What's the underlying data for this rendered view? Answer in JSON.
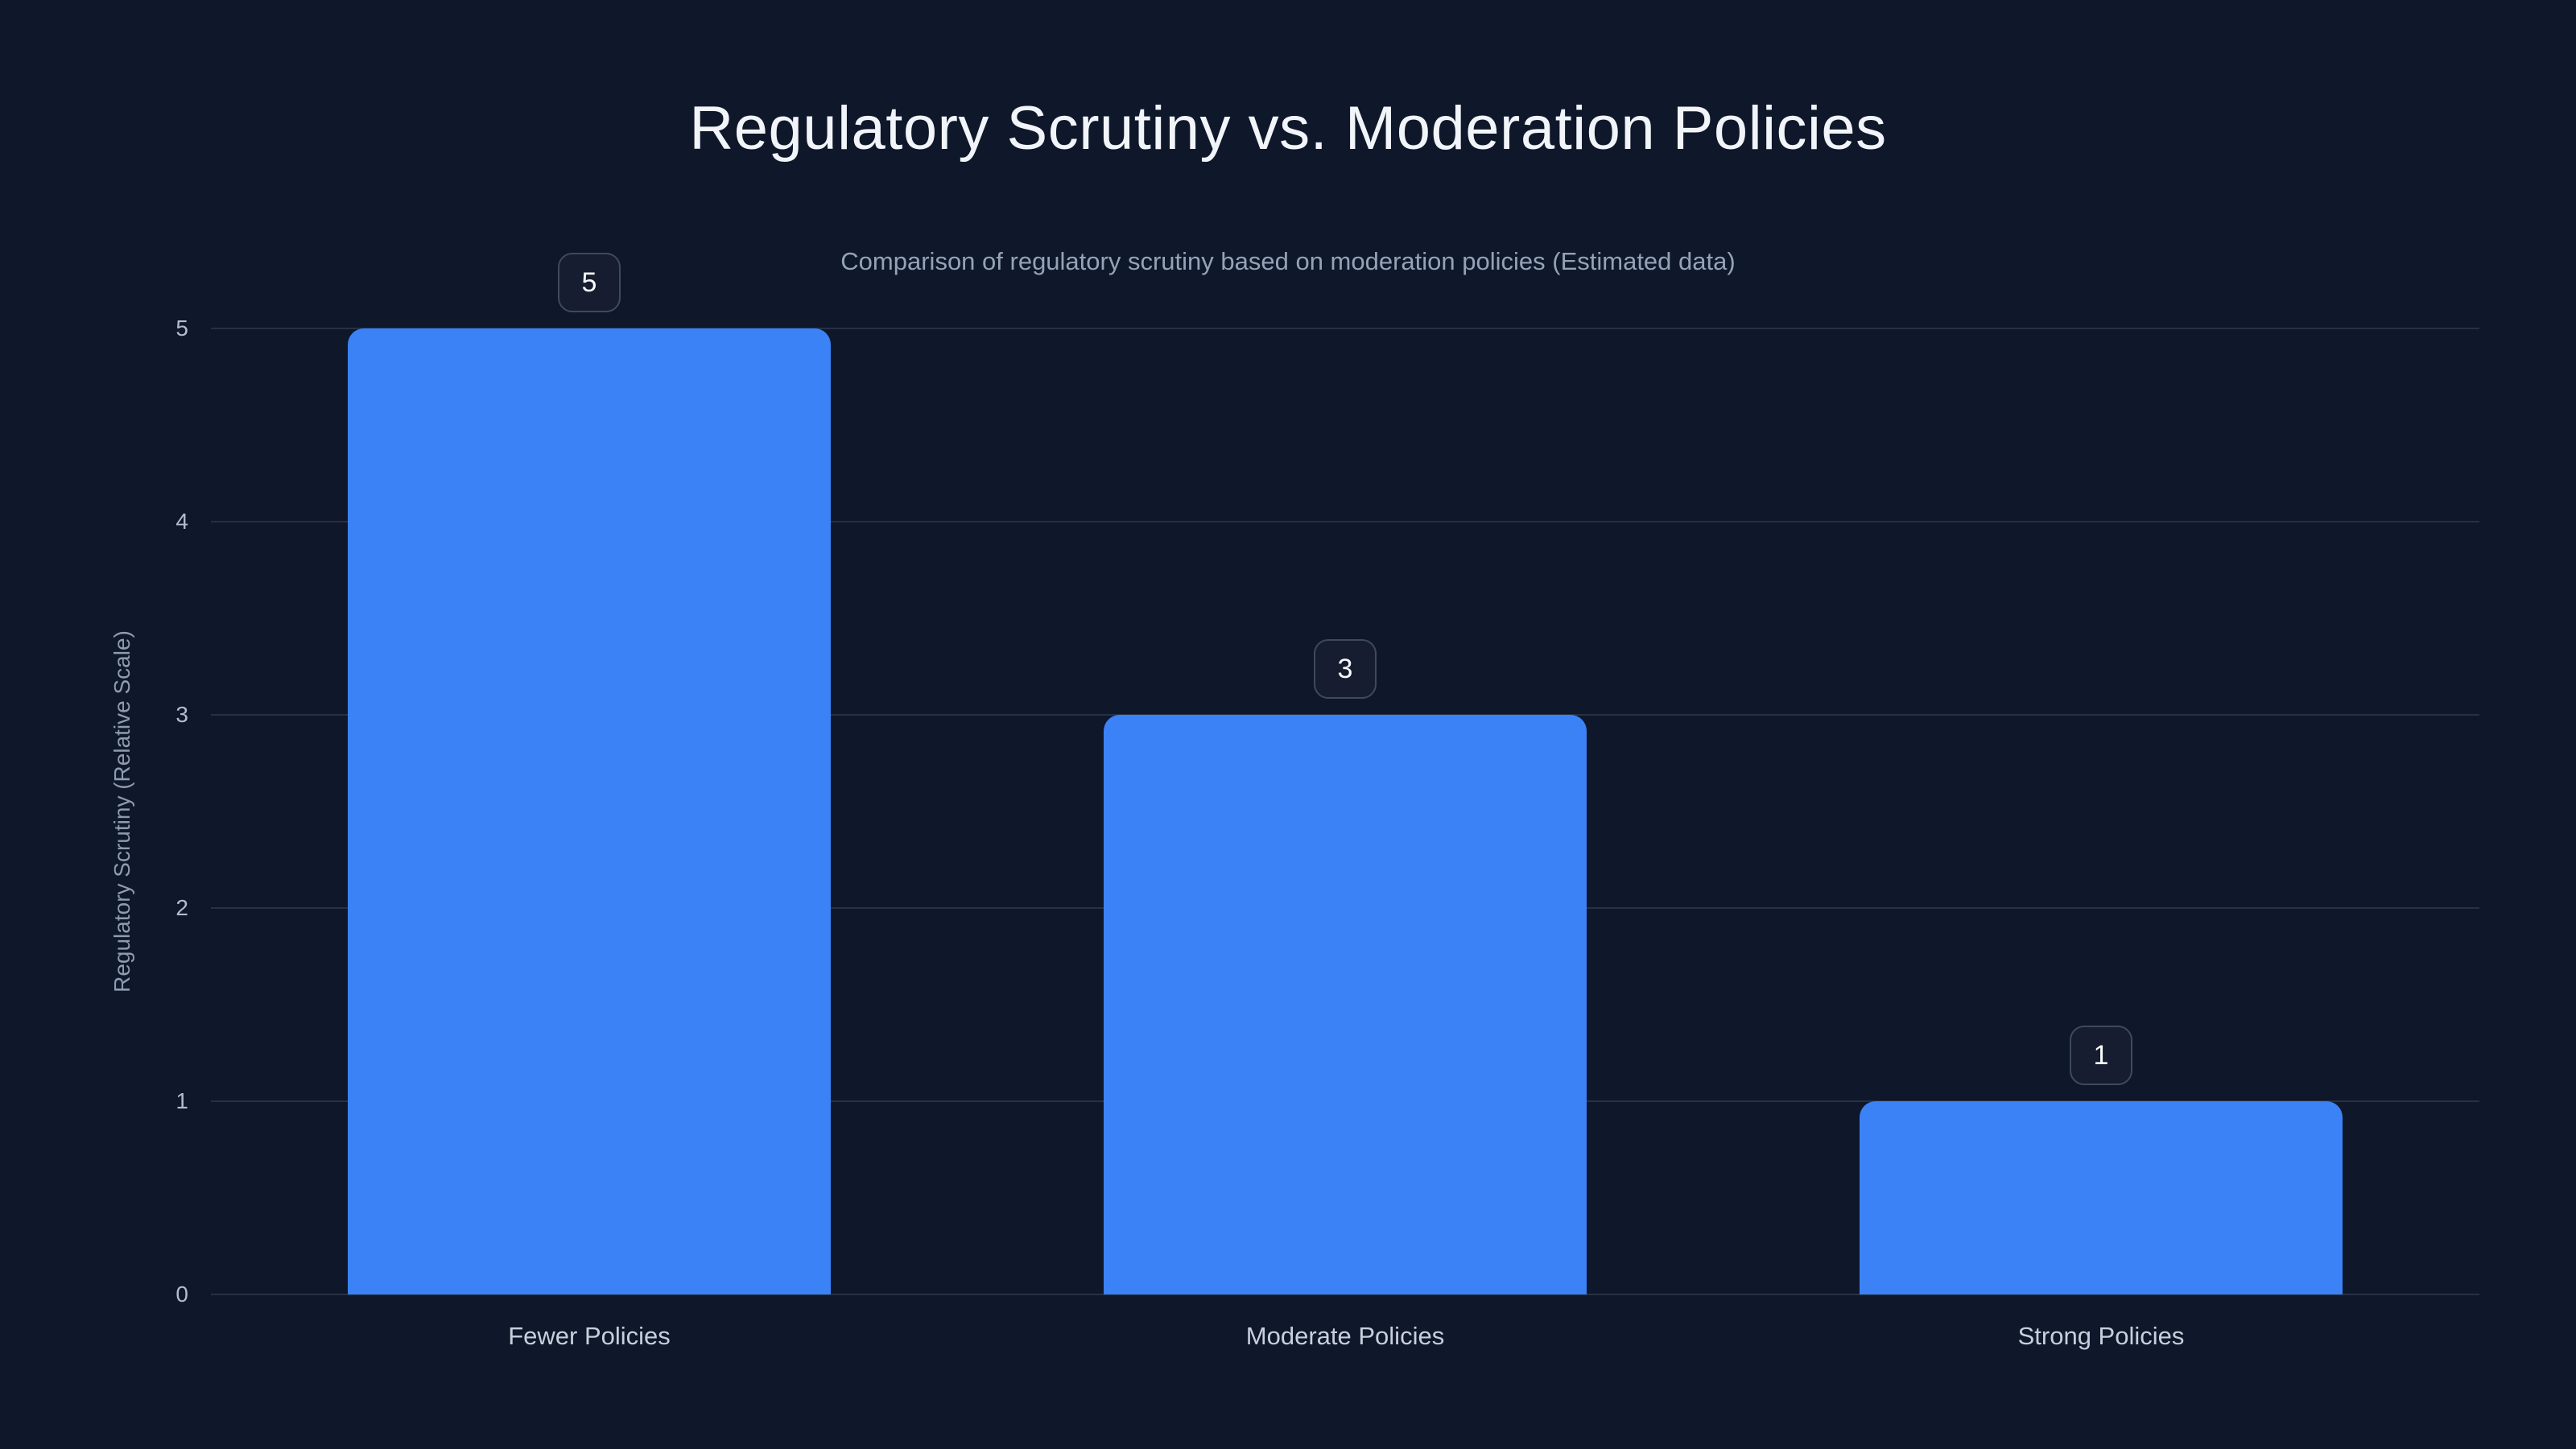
{
  "page": {
    "background_color": "#0f172a"
  },
  "chart_data": {
    "type": "bar",
    "title": "Regulatory Scrutiny vs. Moderation Policies",
    "subtitle": "Comparison of regulatory scrutiny based on moderation policies (Estimated data)",
    "categories": [
      "Fewer Policies",
      "Moderate Policies",
      "Strong Policies"
    ],
    "values": [
      5,
      3,
      1
    ],
    "value_labels": [
      "5",
      "3",
      "1"
    ],
    "xlabel": "",
    "ylabel": "Regulatory Scrutiny (Relative Scale)",
    "ylim": [
      0,
      5
    ],
    "yticks": [
      0,
      1,
      2,
      3,
      4,
      5
    ],
    "grid": "horizontal",
    "legend": "none",
    "bar_color": "#3b82f6",
    "gridline_color": "#263144",
    "title_color": "#f1f5f9",
    "subtitle_color": "#94a3b8",
    "tick_label_color": "#b2bdcc",
    "category_label_color": "#c6cfdb"
  }
}
